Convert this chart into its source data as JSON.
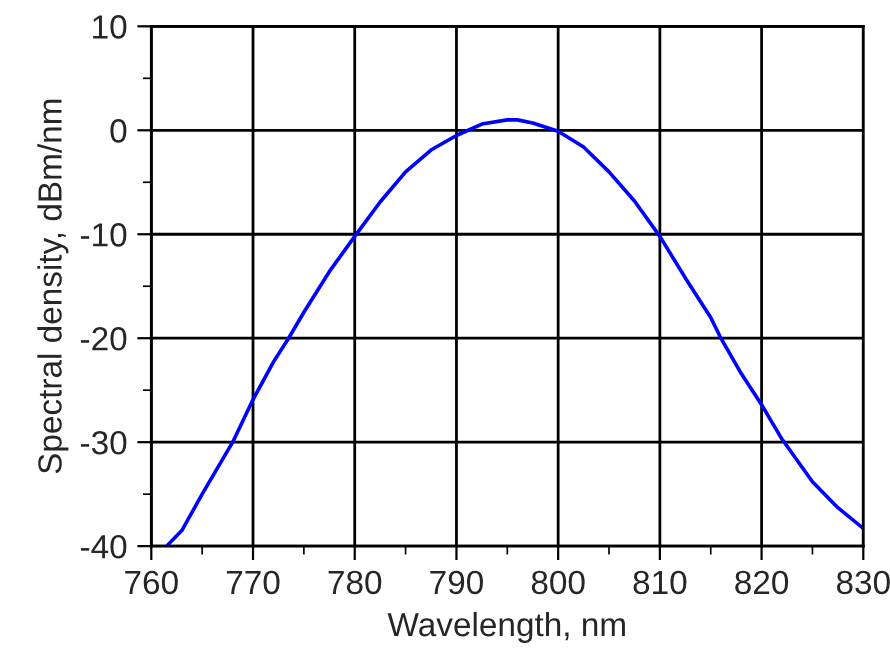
{
  "chart_data": {
    "type": "line",
    "xlabel": "Wavelength, nm",
    "ylabel": "Spectral density, dBm/nm",
    "x": [
      761.5,
      763,
      765,
      766.5,
      768,
      770,
      772,
      773.5,
      775,
      777.5,
      780,
      782.5,
      785,
      787.5,
      790,
      792.5,
      795,
      796,
      797.5,
      800,
      802.5,
      805,
      807.5,
      810,
      812.5,
      815,
      816,
      818,
      820,
      822,
      825,
      827.5,
      830
    ],
    "series": [
      {
        "color": "#0000ff",
        "values": [
          -40,
          -38.5,
          -35,
          -32.5,
          -30,
          -25.9,
          -22.3,
          -20,
          -17.5,
          -13.6,
          -10.2,
          -6.9,
          -4,
          -1.9,
          -0.5,
          0.6,
          1.0,
          1.0,
          0.7,
          -0.1,
          -1.6,
          -4,
          -6.8,
          -10.2,
          -14.2,
          -18,
          -20,
          -23.4,
          -26.4,
          -29.7,
          -33.8,
          -36.3,
          -38.3
        ]
      }
    ],
    "xlim": [
      760,
      830
    ],
    "xticks": [
      760,
      770,
      780,
      790,
      800,
      810,
      820,
      830
    ],
    "ylim": [
      -40,
      10
    ],
    "yticks": [
      -40,
      -30,
      -20,
      -10,
      0,
      10
    ],
    "grid": true,
    "marker": "none",
    "line_style": "solid",
    "legend": false
  }
}
